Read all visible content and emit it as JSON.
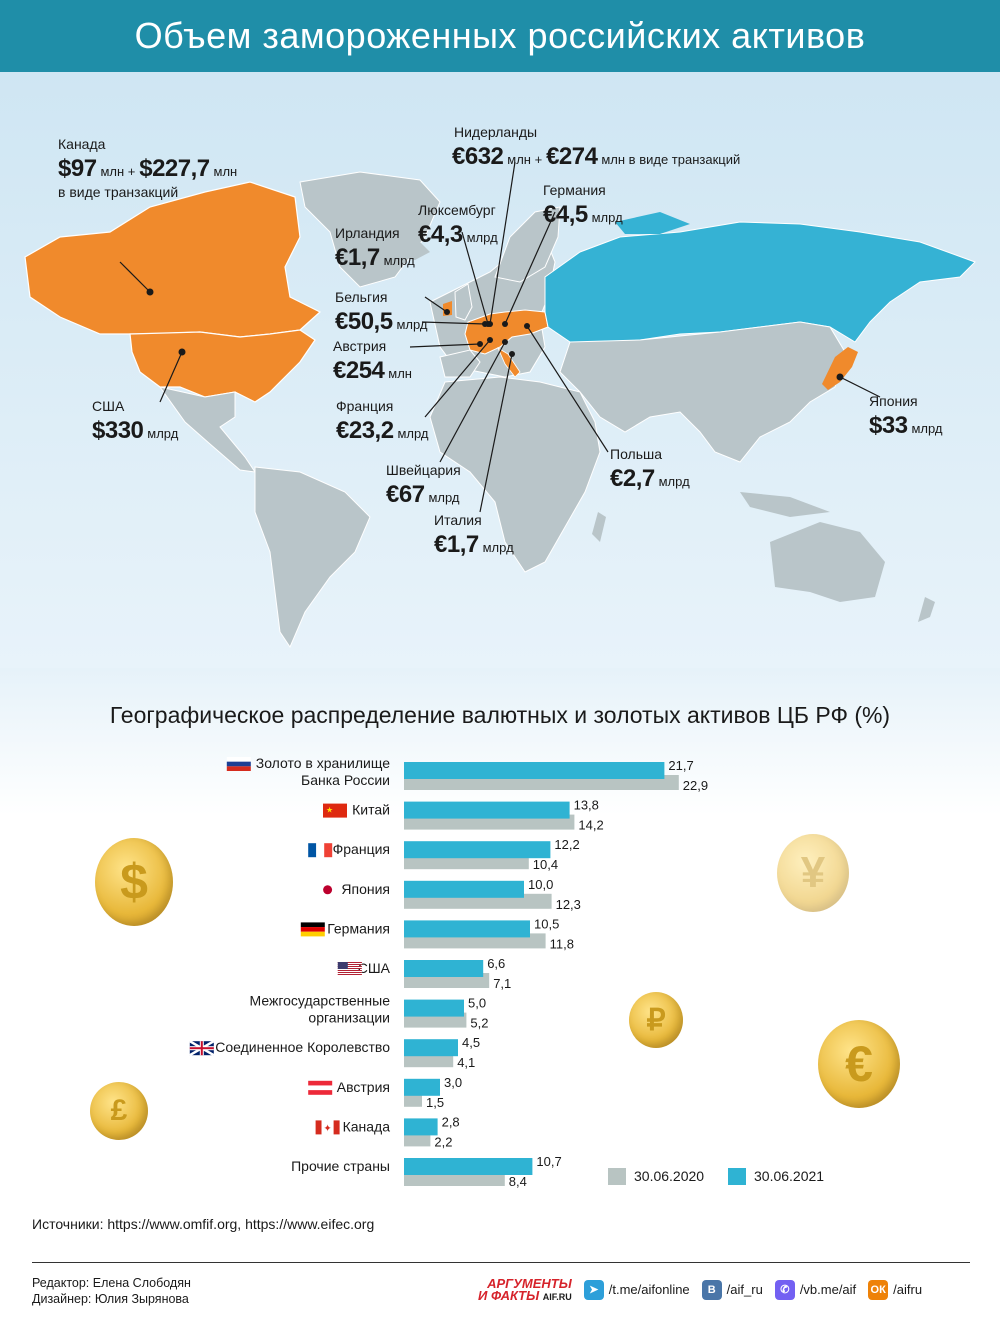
{
  "header": {
    "title": "Объем замороженных российских активов"
  },
  "colors": {
    "header_bg": "#1f8ea8",
    "frozen_west": "#f08a2c",
    "russia": "#35b2d4",
    "land": "#b9c5c9",
    "series_2020": "#b8c4c2",
    "series_2021": "#2fb3d3"
  },
  "map_labels": {
    "canada": {
      "name": "Канада",
      "v1": "$97",
      "u1": "млн +",
      "v2": "$227,7",
      "u2": "млн",
      "note": "в виде транзакций"
    },
    "netherlands": {
      "name": "Нидерланды",
      "v1": "€632",
      "u1": "млн +",
      "v2": "€274",
      "u2": "млн в виде транзакций"
    },
    "germany": {
      "name": "Германия",
      "value": "€4,5",
      "unit": "млрд"
    },
    "luxembourg": {
      "name": "Люксембург",
      "value": "€4,3",
      "unit": "млрд"
    },
    "ireland": {
      "name": "Ирландия",
      "value": "€1,7",
      "unit": "млрд"
    },
    "belgium": {
      "name": "Бельгия",
      "value": "€50,5",
      "unit": "млрд"
    },
    "austria": {
      "name": "Австрия",
      "value": "€254",
      "unit": "млн"
    },
    "usa": {
      "name": "США",
      "value": "$330",
      "unit": "млрд"
    },
    "france": {
      "name": "Франция",
      "value": "€23,2",
      "unit": "млрд"
    },
    "switzerland": {
      "name": "Швейцария",
      "value": "€67",
      "unit": "млрд"
    },
    "italy": {
      "name": "Италия",
      "value": "€1,7",
      "unit": "млрд"
    },
    "poland": {
      "name": "Польша",
      "value": "€2,7",
      "unit": "млрд"
    },
    "japan": {
      "name": "Япония",
      "value": "$33",
      "unit": "млрд"
    }
  },
  "chart_data": {
    "type": "bar",
    "title": "Географическое распределение валютных и золотых активов ЦБ РФ (%)",
    "orientation": "horizontal",
    "categories": [
      "Золото в хранилище Банка России",
      "Китай",
      "Франция",
      "Япония",
      "Германия",
      "США",
      "Межгосударственные организации",
      "Соединенное Королевство",
      "Австрия",
      "Канада",
      "Прочие страны"
    ],
    "category_lines": [
      [
        "Золото в хранилище",
        "Банка России"
      ],
      [
        "Китай"
      ],
      [
        "Франция"
      ],
      [
        "Япония"
      ],
      [
        "Германия"
      ],
      [
        "США"
      ],
      [
        "Межгосударственные",
        "организации"
      ],
      [
        "Соединенное Королевство"
      ],
      [
        "Австрия"
      ],
      [
        "Канада"
      ],
      [
        "Прочие страны"
      ]
    ],
    "flags": [
      "russia",
      "china",
      "france",
      "japan",
      "germany",
      "usa",
      "",
      "uk",
      "austria",
      "canada",
      ""
    ],
    "series": [
      {
        "name": "30.06.2021",
        "values": [
          21.7,
          13.8,
          12.2,
          10.0,
          10.5,
          6.6,
          5.0,
          4.5,
          3.0,
          2.8,
          10.7
        ],
        "labels": [
          "21,7",
          "13,8",
          "12,2",
          "10,0",
          "10,5",
          "6,6",
          "5,0",
          "4,5",
          "3,0",
          "2,8",
          "10,7"
        ],
        "color": "#2fb3d3"
      },
      {
        "name": "30.06.2020",
        "values": [
          22.9,
          14.2,
          10.4,
          12.3,
          11.8,
          7.1,
          5.2,
          4.1,
          1.5,
          2.2,
          8.4
        ],
        "labels": [
          "22,9",
          "14,2",
          "10,4",
          "12,3",
          "11,8",
          "7,1",
          "5,2",
          "4,1",
          "1,5",
          "2,2",
          "8,4"
        ],
        "color": "#b8c4c2"
      }
    ],
    "legend": [
      {
        "name": "30.06.2020",
        "color": "#b8c4c2"
      },
      {
        "name": "30.06.2021",
        "color": "#2fb3d3"
      }
    ],
    "legend_position": "bottom-right"
  },
  "sources": {
    "text": "Источники: https://www.omfif.org, https://www.eifec.org"
  },
  "credits": {
    "editor": "Редактор: Елена Слободян",
    "designer": "Дизайнер: Юлия Зырянова"
  },
  "brand": {
    "line1": "АРГУМЕНТЫ",
    "line2": "И ФАКТЫ",
    "site": "AIF.RU"
  },
  "social": [
    {
      "icon": "telegram-icon",
      "text": "/t.me/aifonline",
      "color": "#2d9fd9"
    },
    {
      "icon": "vk-icon",
      "text": "/aif_ru",
      "color": "#4a76a8"
    },
    {
      "icon": "viber-icon",
      "text": "/vb.me/aif",
      "color": "#7360f2"
    },
    {
      "icon": "ok-icon",
      "text": "/aifru",
      "color": "#ee8208"
    }
  ]
}
